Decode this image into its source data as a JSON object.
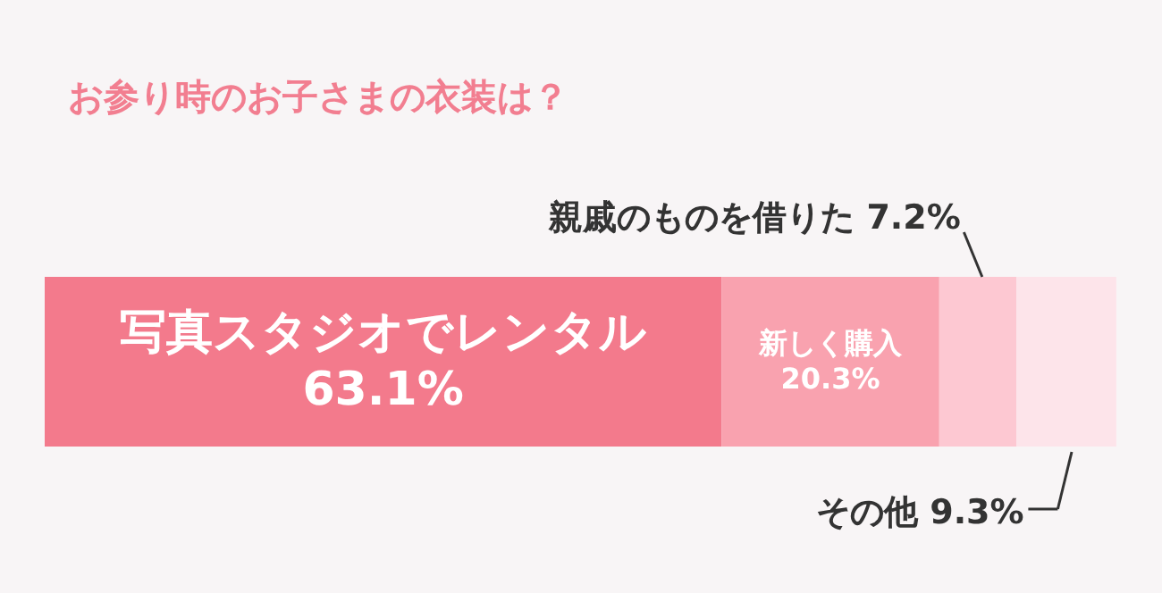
{
  "chart_data": {
    "type": "bar",
    "orientation": "horizontal",
    "stacked": true,
    "title": "お参り時のお子さまの衣装は？",
    "categories": [
      null
    ],
    "xlim": [
      0,
      100
    ],
    "tick_labels": false,
    "series": [
      {
        "name": "写真スタジオでレンタル",
        "color": "#f37a8c",
        "values": [
          63.1
        ],
        "value_labels": [
          "63.1%"
        ]
      },
      {
        "name": "新しく購入",
        "color": "#f9a2af",
        "values": [
          20.3
        ],
        "value_labels": [
          "20.3%"
        ]
      },
      {
        "name": "親戚のものを借りた",
        "color": "#fdc8d2",
        "values": [
          7.2
        ],
        "value_labels": [
          "7.2%"
        ]
      },
      {
        "name": "その他",
        "color": "#fde4ea",
        "values": [
          9.3
        ],
        "value_labels": [
          "9.3%"
        ]
      }
    ]
  }
}
